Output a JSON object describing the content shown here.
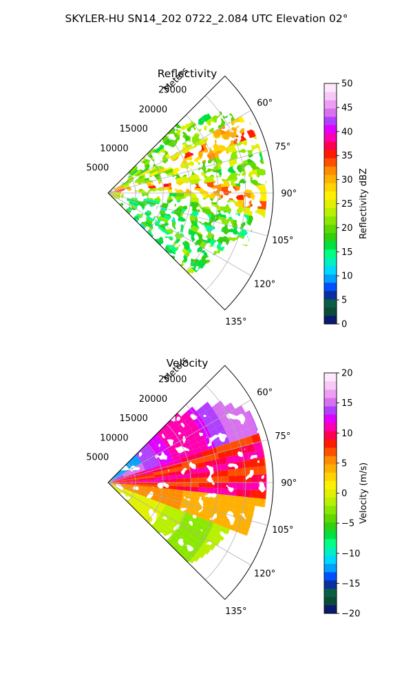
{
  "figure": {
    "title": "SKYLER-HU  SN14_202  0722_2.084 UTC Elevation 02°"
  },
  "chart_data": [
    {
      "type": "heatmap",
      "panel": "reflectivity",
      "title": "Reflectivity",
      "projection": "polar sector",
      "theta_range_deg": [
        45,
        135
      ],
      "theta_ticks": [
        "60°",
        "75°",
        "90°",
        "105°",
        "120°",
        "135°"
      ],
      "theta_tick_values": [
        60,
        75,
        90,
        105,
        120,
        135
      ],
      "r_range_m": [
        0,
        30000
      ],
      "r_ticks": [
        "5000",
        "10000",
        "15000",
        "20000",
        "25000"
      ],
      "r_tick_values": [
        5000,
        10000,
        15000,
        20000,
        25000
      ],
      "r_label": "Meters",
      "grid": true,
      "colorbar": {
        "label": "Reflectivity dBZ",
        "range": [
          0,
          50
        ],
        "ticks": [
          "0",
          "5",
          "10",
          "15",
          "20",
          "25",
          "30",
          "35",
          "40",
          "45",
          "50"
        ],
        "tick_values": [
          0,
          5,
          10,
          15,
          20,
          25,
          30,
          35,
          40,
          45,
          50
        ],
        "colors": [
          "#0a1a6e",
          "#0b4a3a",
          "#0b5e44",
          "#0a2f9e",
          "#0050ff",
          "#00a0ff",
          "#00d8ff",
          "#00f0c0",
          "#00ff80",
          "#00e040",
          "#30d010",
          "#60d800",
          "#8ae800",
          "#b8f000",
          "#e0f000",
          "#fff000",
          "#ffd400",
          "#ffb000",
          "#ff8c00",
          "#ff5000",
          "#ff1a00",
          "#ff0050",
          "#ff00b0",
          "#e000ff",
          "#b040ff",
          "#d870f0",
          "#ee9ef2",
          "#f8c8f8",
          "#fde8fc"
        ]
      }
    },
    {
      "type": "heatmap",
      "panel": "velocity",
      "title": "Velocity",
      "projection": "polar sector",
      "theta_range_deg": [
        45,
        135
      ],
      "theta_ticks": [
        "60°",
        "75°",
        "90°",
        "105°",
        "120°",
        "135°"
      ],
      "theta_tick_values": [
        60,
        75,
        90,
        105,
        120,
        135
      ],
      "r_range_m": [
        0,
        30000
      ],
      "r_ticks": [
        "5000",
        "10000",
        "15000",
        "20000",
        "25000"
      ],
      "r_tick_values": [
        5000,
        10000,
        15000,
        20000,
        25000
      ],
      "r_label": "Meters",
      "grid": true,
      "colorbar": {
        "label": "Velocity (m/s)",
        "range": [
          -20,
          20
        ],
        "ticks": [
          "−20",
          "−15",
          "−10",
          "−5",
          "0",
          "5",
          "10",
          "15",
          "20"
        ],
        "tick_values": [
          -20,
          -15,
          -10,
          -5,
          0,
          5,
          10,
          15,
          20
        ],
        "colors": [
          "#0a1a6e",
          "#0b4a3a",
          "#0b5e44",
          "#0a2f9e",
          "#0050ff",
          "#00a0ff",
          "#00d8ff",
          "#00f0c0",
          "#00ff80",
          "#00e040",
          "#30d010",
          "#60d800",
          "#8ae800",
          "#b8f000",
          "#e0f000",
          "#fff000",
          "#ffd400",
          "#ffb000",
          "#ff8c00",
          "#ff5000",
          "#ff1a00",
          "#ff0050",
          "#ff00b0",
          "#e000ff",
          "#b040ff",
          "#d870f0",
          "#ee9ef2",
          "#f8c8f8",
          "#fde8fc"
        ]
      }
    }
  ]
}
